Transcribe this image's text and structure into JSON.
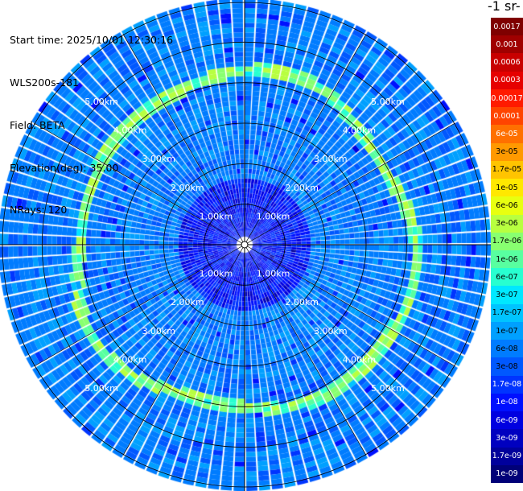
{
  "header": {
    "start_time": "Start time: 2025/10/01 12:30:16",
    "instrument": "WLS200s-181",
    "field": "Field: BETA",
    "elevation": "Elevation(deg): 35.00",
    "nrays": "NRays: 120"
  },
  "colorbar": {
    "title": "-1 sr-",
    "labels": [
      "0.0017",
      "0.001",
      "0.0006",
      "0.0003",
      "0.00017",
      "0.0001",
      "6e-05",
      "3e-05",
      "1.7e-05",
      "1e-05",
      "6e-06",
      "3e-06",
      "1.7e-06",
      "1e-06",
      "6e-07",
      "3e-07",
      "1.7e-07",
      "1e-07",
      "6e-08",
      "3e-08",
      "1.7e-08",
      "1e-08",
      "6e-09",
      "3e-09",
      "1.7e-09",
      "1e-09"
    ],
    "colors": [
      "#7f0000",
      "#a00000",
      "#c80000",
      "#e60000",
      "#ff1a00",
      "#ff4400",
      "#ff7000",
      "#ff9900",
      "#ffc400",
      "#ffe800",
      "#e8ff10",
      "#b8ff40",
      "#88ff70",
      "#58ffa0",
      "#28ffd0",
      "#00e8ff",
      "#00c4ff",
      "#00a0ff",
      "#007cff",
      "#0058ff",
      "#0034ff",
      "#0010ff",
      "#0000e0",
      "#0000c0",
      "#00009c",
      "#000078"
    ]
  },
  "chart_data": {
    "type": "heatmap",
    "projection": "polar-ppi",
    "field": "BETA",
    "elevation_deg": 35.0,
    "n_rays": 120,
    "range_rings_km": [
      1.0,
      2.0,
      3.0,
      4.0,
      5.0
    ],
    "range_ring_labels": [
      "1.00km",
      "2.00km",
      "3.00km",
      "4.00km",
      "5.00km"
    ],
    "max_range_km": 5.0,
    "grid": true,
    "colorbar_placement": "right",
    "high_backscatter_ring_km": 4.1,
    "high_backscatter_value": 1e-06,
    "background_value": 6e-08,
    "near_center_value": 1e-08
  }
}
